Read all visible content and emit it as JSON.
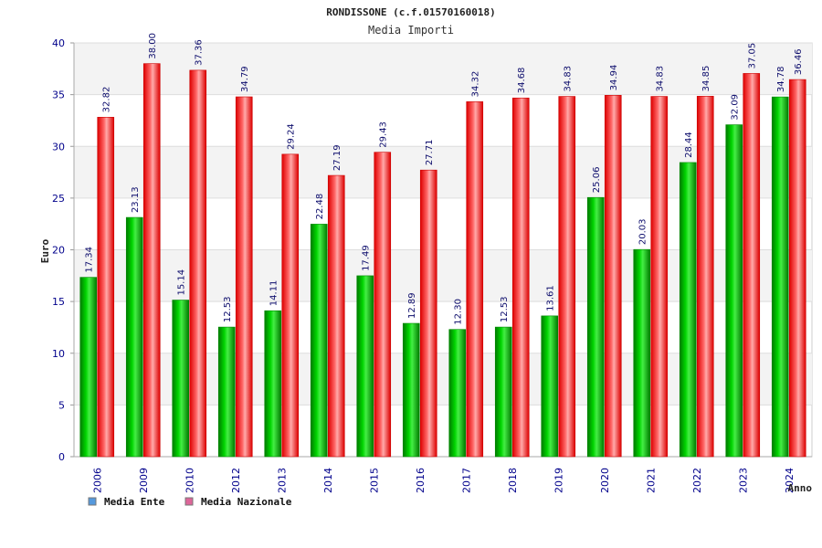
{
  "chart_data": {
    "type": "bar",
    "title": "RONDISSONE (c.f.01570160018)",
    "subtitle": "Media Importi",
    "xlabel": "Anno",
    "ylabel": "Euro",
    "ylim": [
      0,
      40
    ],
    "yticks": [
      "0",
      "5",
      "10",
      "15",
      "20",
      "25",
      "30",
      "35",
      "40"
    ],
    "grid": true,
    "legend_position": "bottom-left",
    "categories": [
      "2006",
      "2009",
      "2010",
      "2012",
      "2013",
      "2014",
      "2015",
      "2016",
      "2017",
      "2018",
      "2019",
      "2020",
      "2021",
      "2022",
      "2023",
      "2024"
    ],
    "series": [
      {
        "name": "Media Ente",
        "color": "#00aa00",
        "legend_color": "#5599dd",
        "values": [
          17.34,
          23.13,
          15.14,
          12.53,
          14.11,
          22.48,
          17.49,
          12.89,
          12.3,
          12.53,
          13.61,
          25.06,
          20.03,
          28.44,
          32.09,
          34.78
        ],
        "labels": [
          "17.34",
          "23.13",
          "15.14",
          "12.53",
          "14.11",
          "22.48",
          "17.49",
          "12.89",
          "12.30",
          "12.53",
          "13.61",
          "25.06",
          "20.03",
          "28.44",
          "32.09",
          "34.78"
        ]
      },
      {
        "name": "Media Nazionale",
        "color": "#ee1111",
        "legend_color": "#dd6699",
        "values": [
          32.82,
          38.0,
          37.36,
          34.79,
          29.24,
          27.19,
          29.43,
          27.71,
          34.32,
          34.68,
          34.83,
          34.94,
          34.83,
          34.85,
          37.05,
          36.46
        ],
        "labels": [
          "32.82",
          "38.00",
          "37.36",
          "34.79",
          "29.24",
          "27.19",
          "29.43",
          "27.71",
          "34.32",
          "34.68",
          "34.83",
          "34.94",
          "34.83",
          "34.85",
          "37.05",
          "36.46"
        ]
      }
    ]
  }
}
